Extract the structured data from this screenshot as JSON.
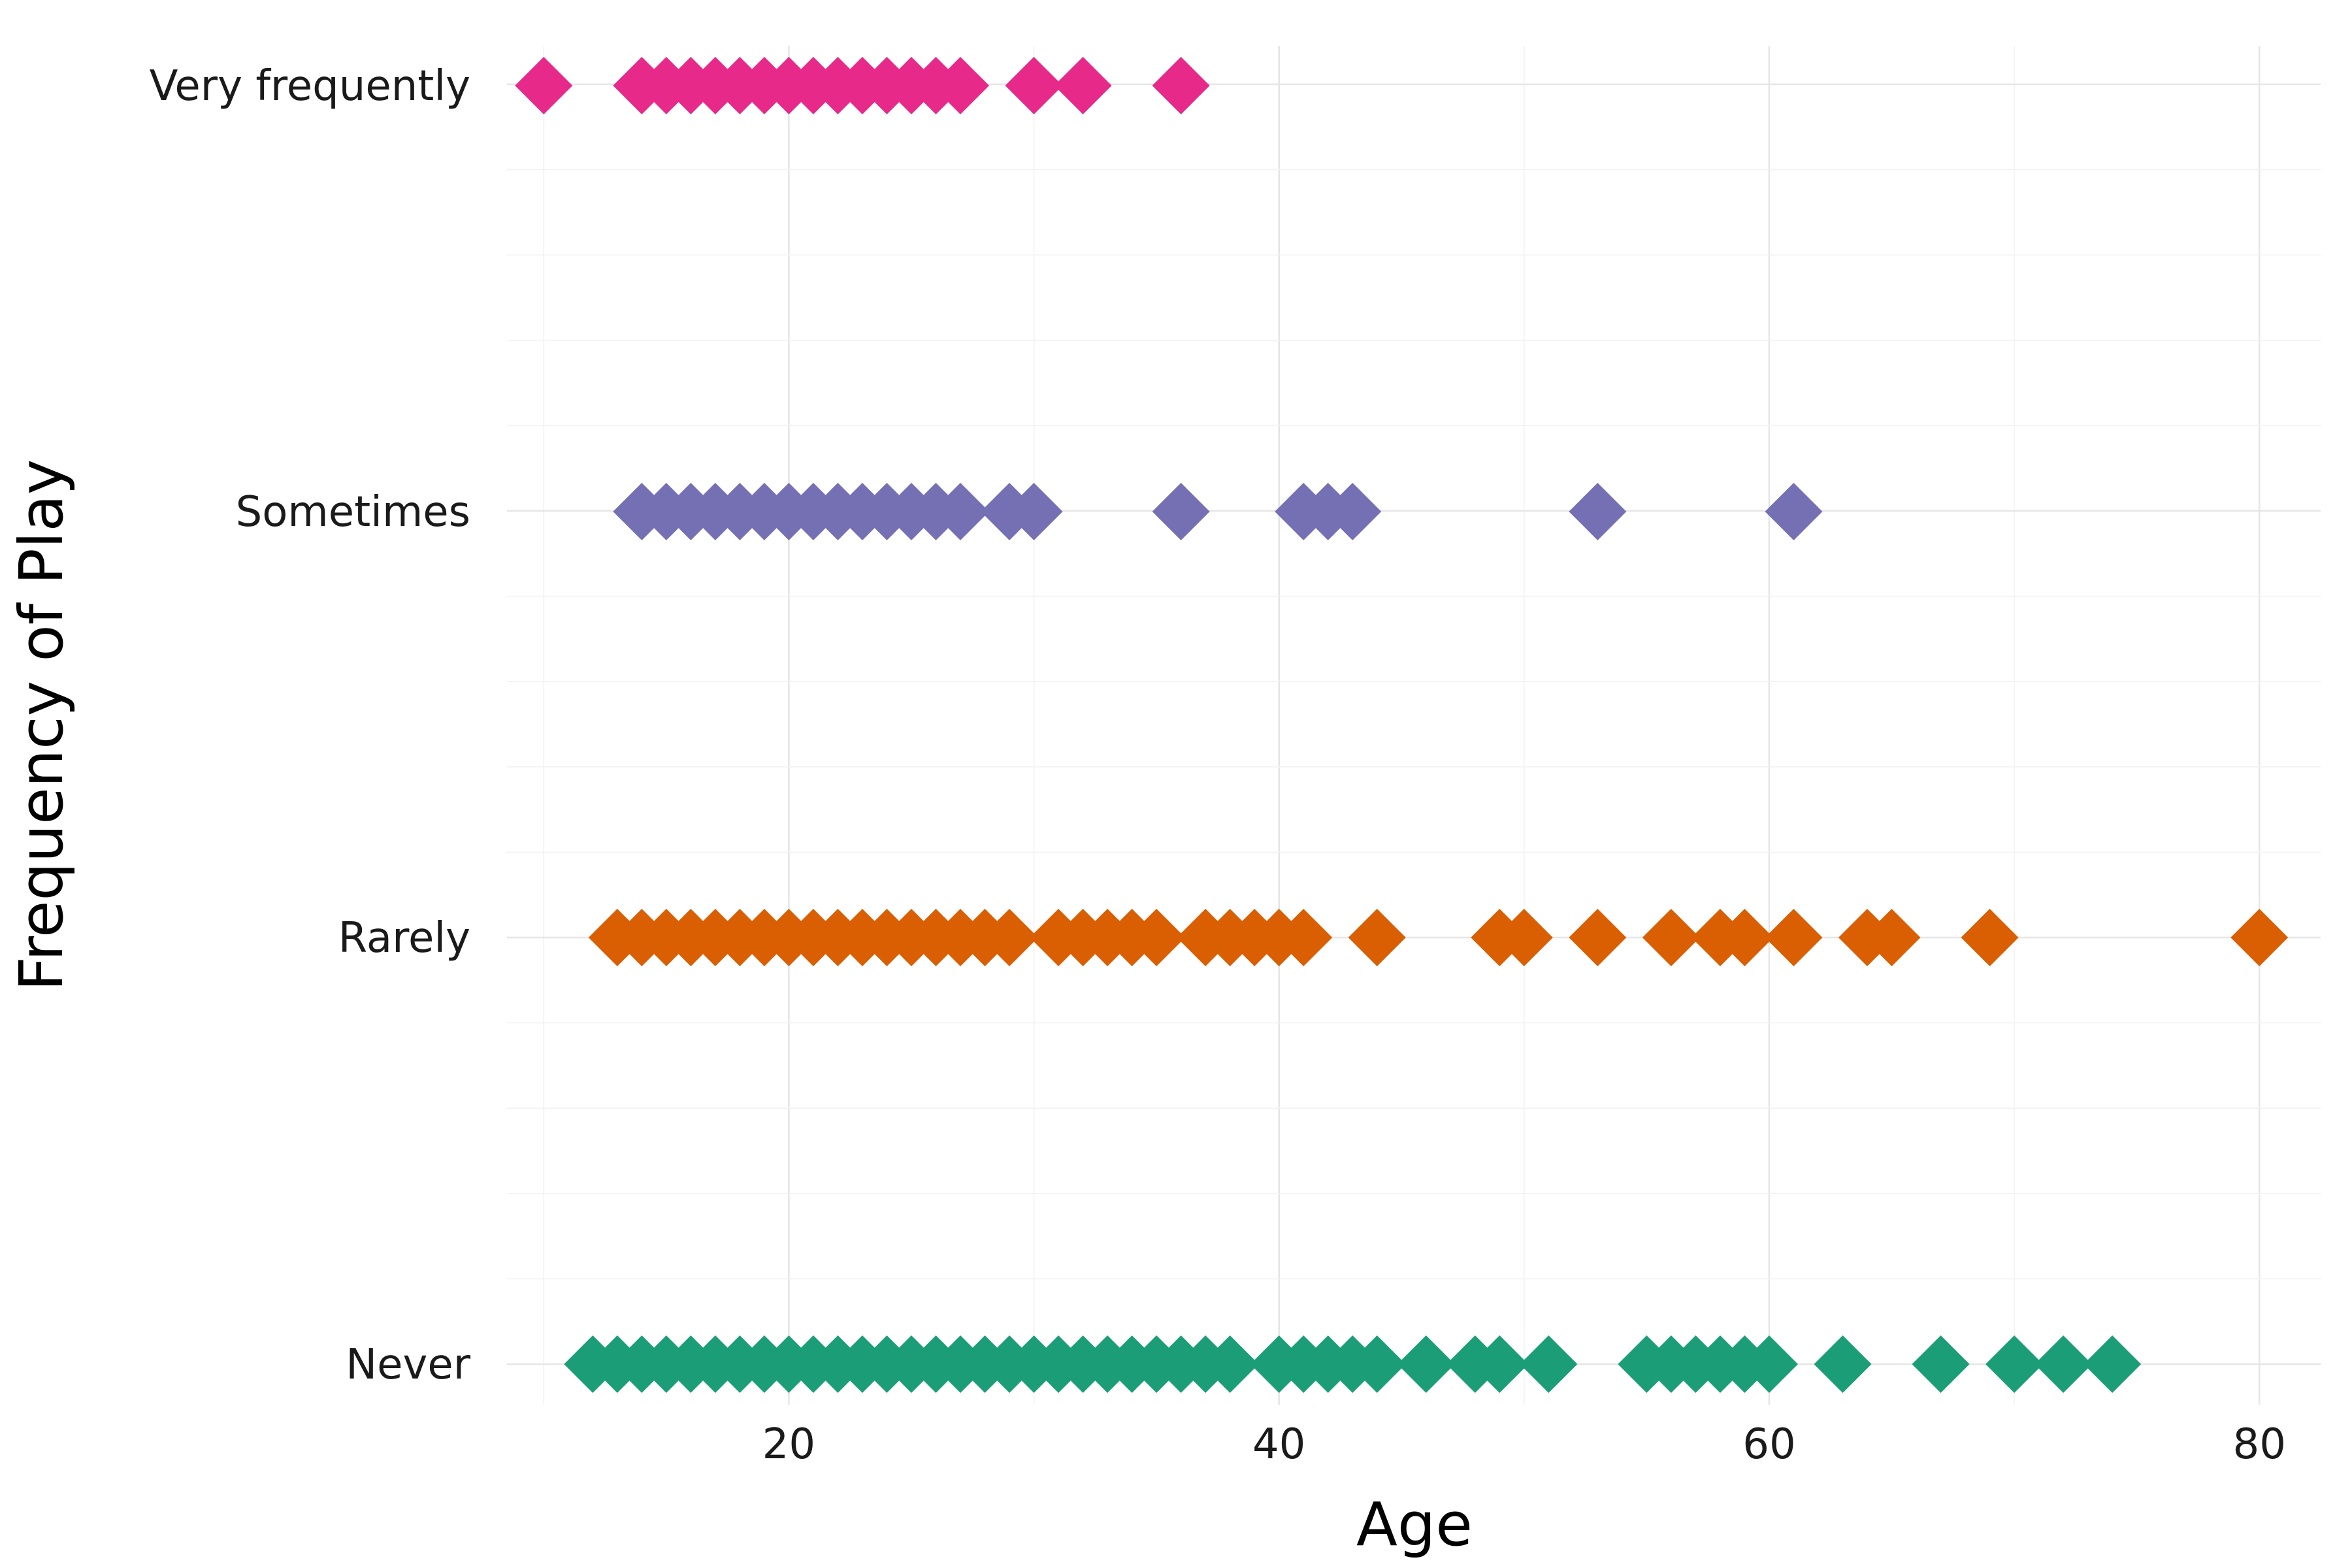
{
  "chart_data": {
    "type": "scatter",
    "title": "",
    "xlabel": "Age",
    "ylabel": "Frequency of Play",
    "xlim": [
      8.5,
      82.5
    ],
    "xticks": [
      20,
      40,
      60,
      80
    ],
    "categories": [
      "Never",
      "Rarely",
      "Sometimes",
      "Very frequently"
    ],
    "grid": true,
    "legend": "none",
    "series": [
      {
        "name": "Never",
        "color": "#1b9e77",
        "marker": "diamond",
        "x": [
          12,
          13,
          14,
          15,
          16,
          17,
          18,
          19,
          20,
          21,
          22,
          23,
          24,
          25,
          26,
          27,
          28,
          29,
          30,
          31,
          32,
          33,
          34,
          35,
          36,
          37,
          38,
          40,
          41,
          42,
          43,
          44,
          46,
          48,
          49,
          51,
          55,
          56,
          57,
          58,
          59,
          60,
          63,
          67,
          70,
          72,
          74
        ]
      },
      {
        "name": "Rarely",
        "color": "#d95f02",
        "marker": "diamond",
        "x": [
          13,
          14,
          15,
          16,
          17,
          18,
          19,
          20,
          21,
          22,
          23,
          24,
          25,
          26,
          27,
          28,
          29,
          31,
          32,
          33,
          34,
          35,
          37,
          38,
          39,
          40,
          41,
          44,
          49,
          50,
          53,
          56,
          58,
          59,
          61,
          64,
          65,
          69,
          80
        ]
      },
      {
        "name": "Sometimes",
        "color": "#7570b3",
        "marker": "diamond",
        "x": [
          14,
          15,
          16,
          17,
          18,
          19,
          20,
          21,
          22,
          23,
          24,
          25,
          26,
          27,
          29,
          30,
          36,
          41,
          42,
          43,
          53,
          61
        ]
      },
      {
        "name": "Very frequently",
        "color": "#e7298a",
        "marker": "diamond",
        "x": [
          10,
          14,
          15,
          16,
          17,
          18,
          19,
          20,
          21,
          22,
          23,
          24,
          25,
          26,
          27,
          30,
          32,
          36
        ]
      }
    ]
  }
}
